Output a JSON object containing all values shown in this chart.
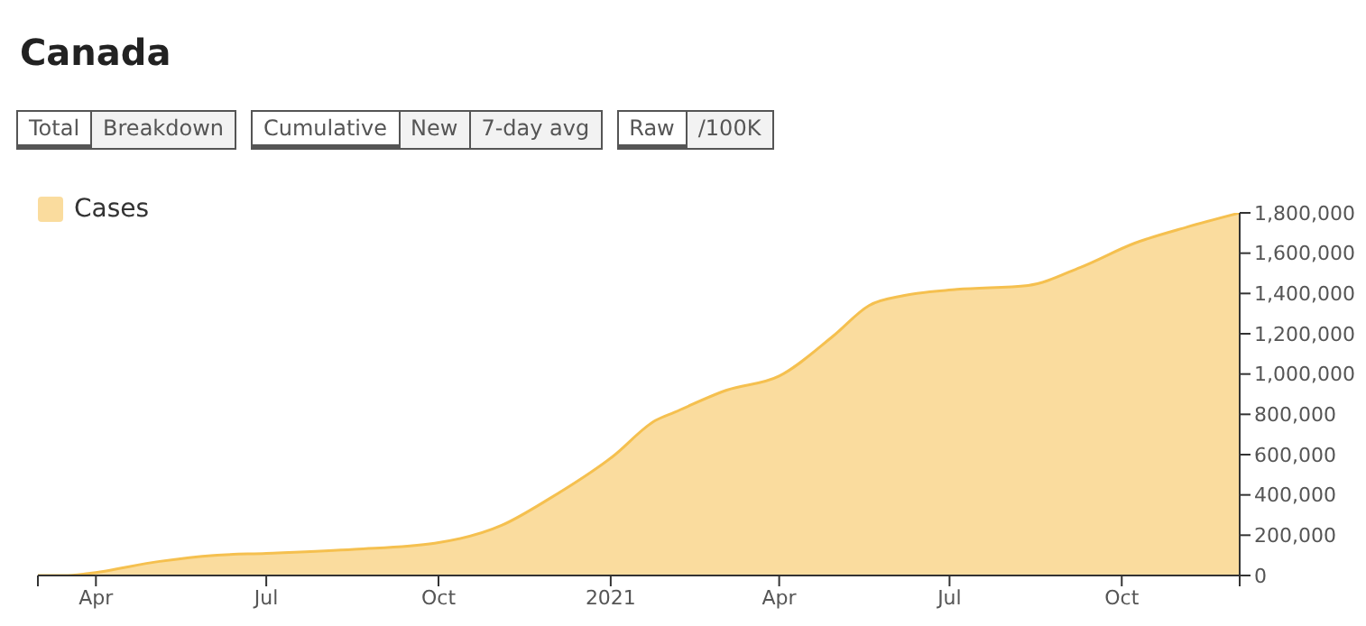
{
  "chart_data": {
    "type": "area",
    "title": "Canada",
    "annotations": [
      "Total",
      "Breakdown",
      "Cumulative",
      "New",
      "7-day avg",
      "Raw",
      "/100K"
    ],
    "x": [
      "2020-03-01",
      "2020-03-15",
      "2020-03-28",
      "2020-05-05",
      "2020-06-03",
      "2020-07-01",
      "2020-08-17",
      "2020-09-29",
      "2020-11-04",
      "2020-11-29",
      "2021-01-02",
      "2021-01-25",
      "2021-02-04",
      "2021-03-04",
      "2021-04-01",
      "2021-04-30",
      "2021-05-19",
      "2021-06-07",
      "2021-07-05",
      "2021-08-12",
      "2021-09-09",
      "2021-10-08",
      "2021-11-05",
      "2021-12-03"
    ],
    "series": [
      {
        "name": "Cases",
        "color": "#f5c04f",
        "values": [
          0,
          0,
          10000,
          70000,
          100000,
          110000,
          130000,
          160000,
          250000,
          380000,
          590000,
          770000,
          810000,
          920000,
          990000,
          1190000,
          1340000,
          1390000,
          1420000,
          1440000,
          1530000,
          1650000,
          1730000,
          1800000
        ]
      }
    ],
    "xlim": [
      "2020-03-01",
      "2021-12-03"
    ],
    "xticks": [
      {
        "value": "2020-03-01",
        "label": null
      },
      {
        "value": "2020-04-01",
        "label": "Apr"
      },
      {
        "value": "2020-07-01",
        "label": "Jul"
      },
      {
        "value": "2020-10-01",
        "label": "Oct"
      },
      {
        "value": "2021-01-01",
        "label": "2021"
      },
      {
        "value": "2021-04-01",
        "label": "Apr"
      },
      {
        "value": "2021-07-01",
        "label": "Jul"
      },
      {
        "value": "2021-10-01",
        "label": "Oct"
      },
      {
        "value": "2021-12-03",
        "label": null
      }
    ],
    "ylim": [
      0,
      1800000
    ],
    "yticks": [
      0,
      {
        "value": 200000,
        "label": "200,000"
      },
      {
        "value": 400000,
        "label": "400,000"
      },
      {
        "value": 600000,
        "label": "600,000"
      },
      {
        "value": 800000,
        "label": "800,000"
      },
      {
        "value": 1000000,
        "label": "1,000,000"
      },
      {
        "value": 1200000,
        "label": "1,200,000"
      },
      {
        "value": 1400000,
        "label": "1,400,000"
      },
      {
        "value": 1600000,
        "label": "1,600,000"
      },
      {
        "value": 1800000,
        "label": "1,800,000"
      }
    ],
    "grid": false,
    "legend": "top left",
    "marker": "none",
    "line_style": "solid"
  }
}
